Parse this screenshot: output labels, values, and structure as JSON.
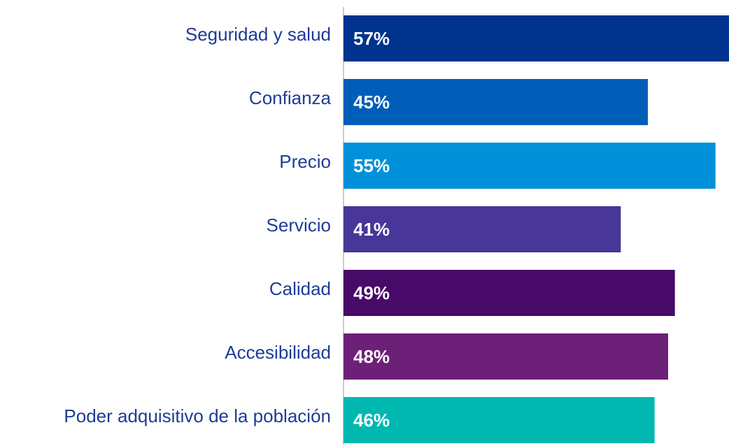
{
  "chart_data": {
    "type": "bar",
    "orientation": "horizontal",
    "categories": [
      "Seguridad y salud",
      "Confianza",
      "Precio",
      "Servicio",
      "Calidad",
      "Accesibilidad",
      "Poder adquisitivo de la población"
    ],
    "values": [
      57,
      45,
      55,
      41,
      49,
      48,
      46
    ],
    "value_labels": [
      "57%",
      "45%",
      "55%",
      "41%",
      "49%",
      "48%",
      "46%"
    ],
    "colors": [
      "#00338d",
      "#005eb8",
      "#0091da",
      "#483698",
      "#470a68",
      "#6d2077",
      "#00b8b0"
    ]
  }
}
